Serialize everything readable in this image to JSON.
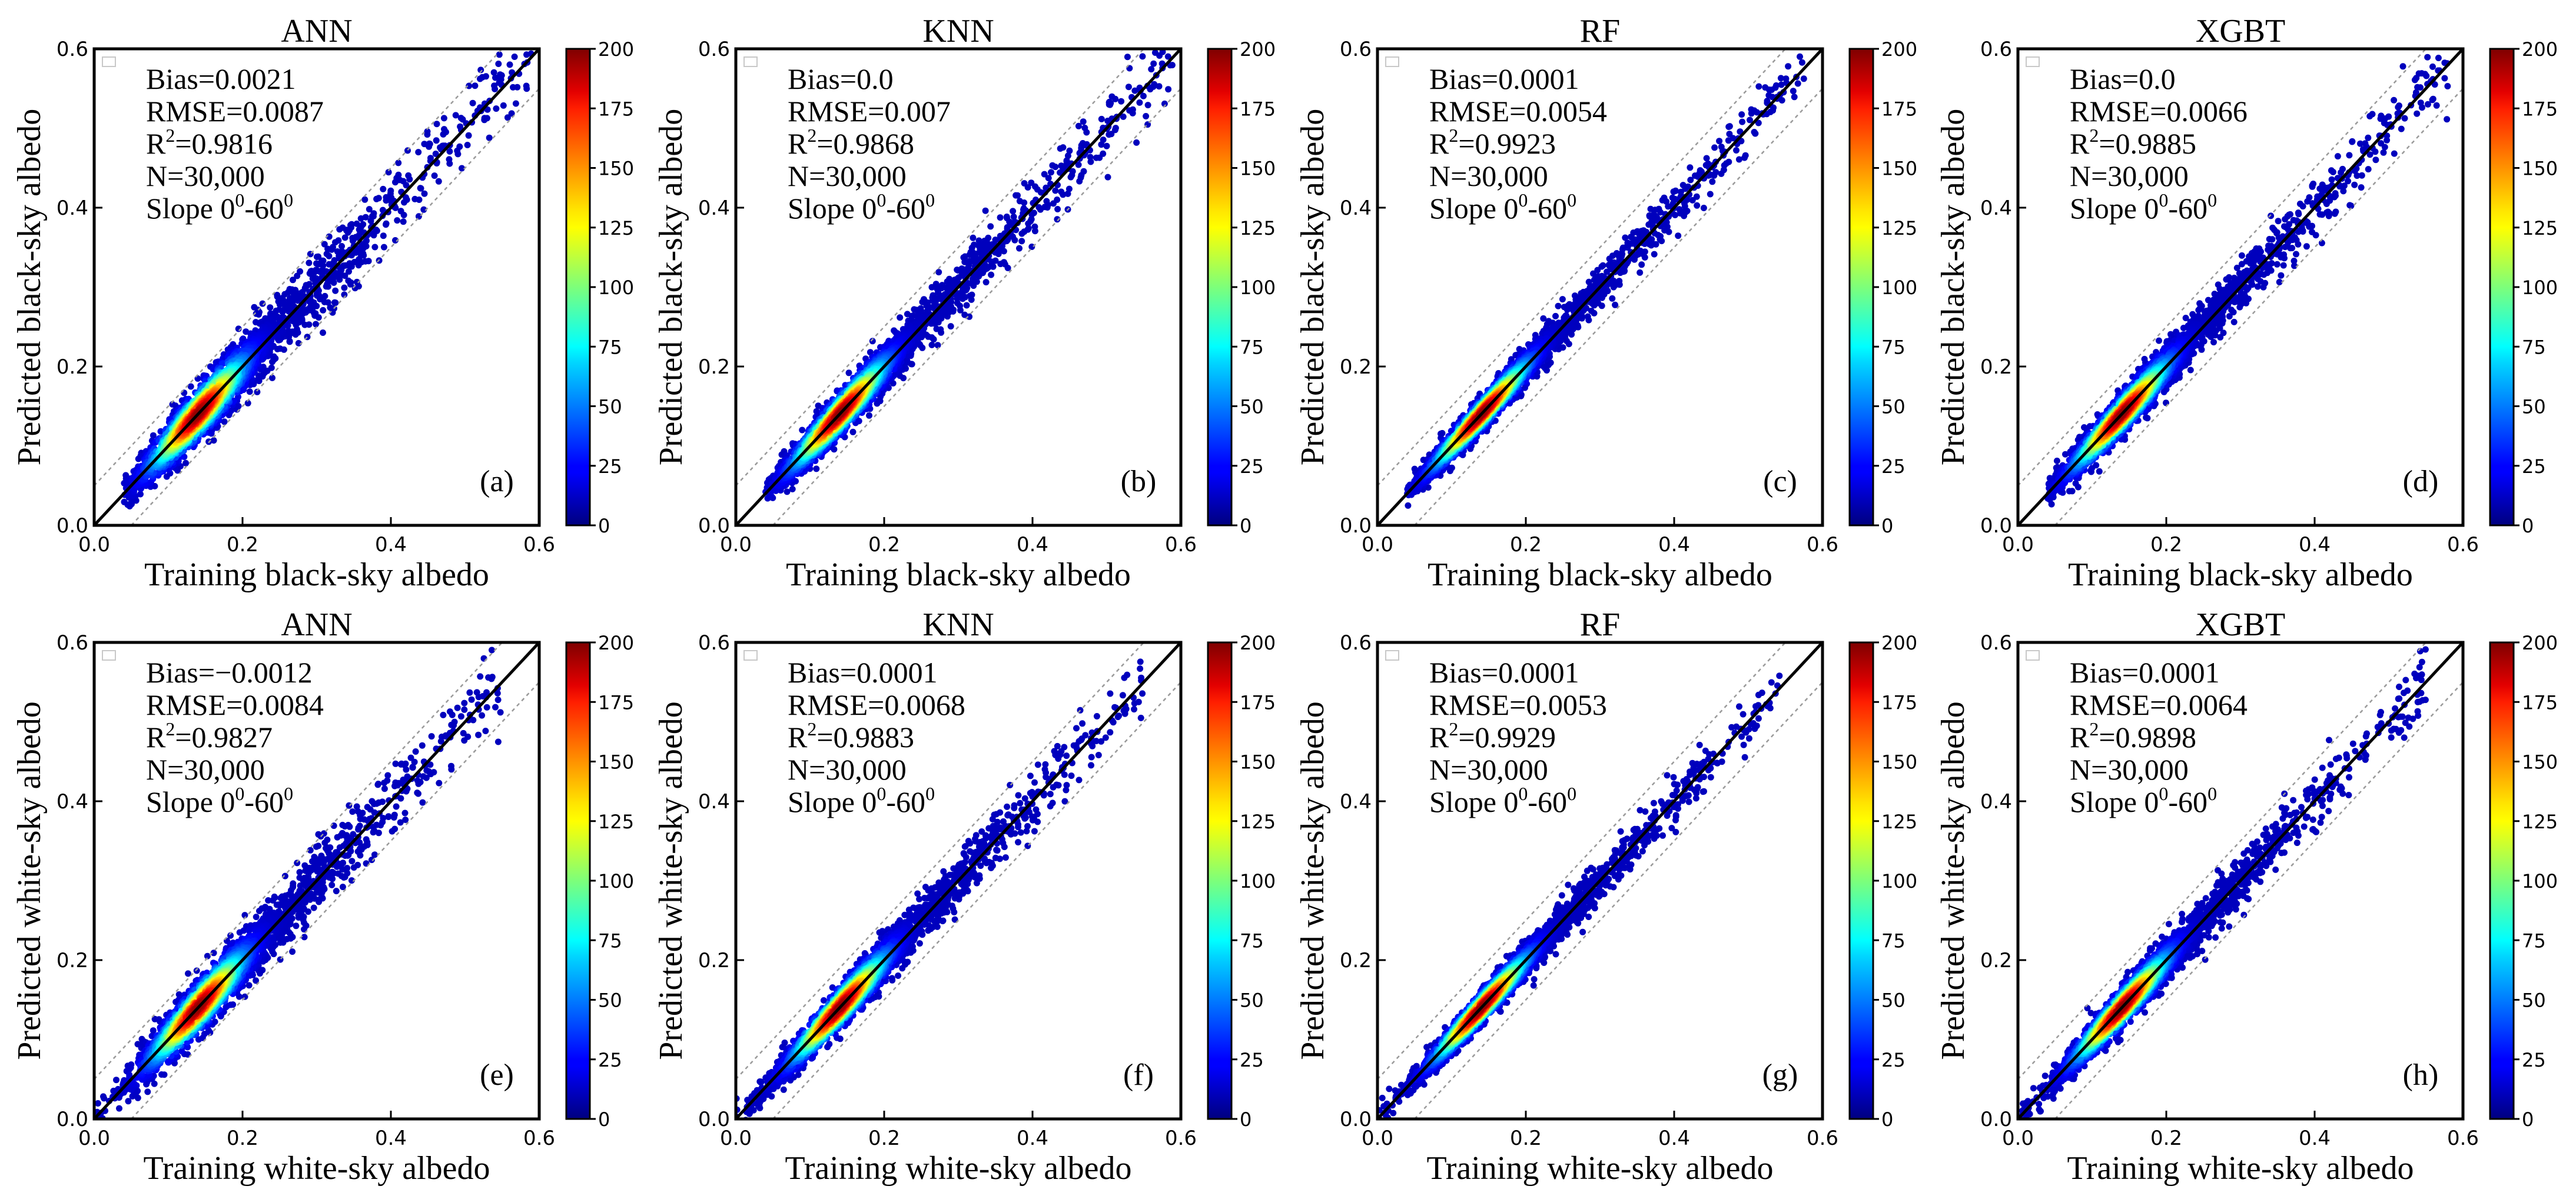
{
  "figure": {
    "panel_count": 8,
    "colormap": "jet",
    "colorbar_ticks": [
      "0",
      "25",
      "50",
      "75",
      "100",
      "125",
      "150",
      "175",
      "200"
    ],
    "colorbar_range": [
      0,
      200
    ],
    "axis_ticks": [
      "0.0",
      "0.2",
      "0.4",
      "0.6"
    ],
    "axis_range": [
      0,
      0.6
    ]
  },
  "chart_data": [
    {
      "type": "scatter",
      "panel": "(a)",
      "title": "ANN",
      "xlabel": "Training black-sky albedo",
      "ylabel": "Predicted black-sky albedo",
      "stats": {
        "bias": "Bias=0.0021",
        "rmse": "RMSE=0.0087",
        "r2_prefix": "R",
        "r2_value": "=0.9816",
        "n": "N=30,000",
        "slope_prefix": "Slope 0",
        "slope_value": "-60"
      },
      "xlim": [
        0,
        0.6
      ],
      "ylim": [
        0,
        0.6
      ],
      "density_peak": 0.14,
      "x_range": [
        0.04,
        0.59
      ],
      "spread": 0.0087,
      "reference_lines": {
        "one_to_one": true,
        "offset": 0.05
      }
    },
    {
      "type": "scatter",
      "panel": "(b)",
      "title": "KNN",
      "xlabel": "Training black-sky albedo",
      "ylabel": "Predicted black-sky albedo",
      "stats": {
        "bias": "Bias=0.0",
        "rmse": "RMSE=0.007",
        "r2_prefix": "R",
        "r2_value": "=0.9868",
        "n": "N=30,000",
        "slope_prefix": "Slope 0",
        "slope_value": "-60"
      },
      "xlim": [
        0,
        0.6
      ],
      "ylim": [
        0,
        0.6
      ],
      "density_peak": 0.14,
      "x_range": [
        0.04,
        0.59
      ],
      "spread": 0.007,
      "reference_lines": {
        "one_to_one": true,
        "offset": 0.05
      }
    },
    {
      "type": "scatter",
      "panel": "(c)",
      "title": "RF",
      "xlabel": "Training black-sky albedo",
      "ylabel": "Predicted black-sky albedo",
      "stats": {
        "bias": "Bias=0.0001",
        "rmse": "RMSE=0.0054",
        "r2_prefix": "R",
        "r2_value": "=0.9923",
        "n": "N=30,000",
        "slope_prefix": "Slope 0",
        "slope_value": "-60"
      },
      "xlim": [
        0,
        0.6
      ],
      "ylim": [
        0,
        0.6
      ],
      "density_peak": 0.14,
      "x_range": [
        0.04,
        0.58
      ],
      "spread": 0.0054,
      "reference_lines": {
        "one_to_one": true,
        "offset": 0.05
      }
    },
    {
      "type": "scatter",
      "panel": "(d)",
      "title": "XGBT",
      "xlabel": "Training black-sky albedo",
      "ylabel": "Predicted black-sky albedo",
      "stats": {
        "bias": "Bias=0.0",
        "rmse": "RMSE=0.0066",
        "r2_prefix": "R",
        "r2_value": "=0.9885",
        "n": "N=30,000",
        "slope_prefix": "Slope 0",
        "slope_value": "-60"
      },
      "xlim": [
        0,
        0.6
      ],
      "ylim": [
        0,
        0.6
      ],
      "density_peak": 0.14,
      "x_range": [
        0.04,
        0.58
      ],
      "spread": 0.0066,
      "reference_lines": {
        "one_to_one": true,
        "offset": 0.05
      }
    },
    {
      "type": "scatter",
      "panel": "(e)",
      "title": "ANN",
      "xlabel": "Training white-sky albedo",
      "ylabel": "Predicted white-sky albedo",
      "stats": {
        "bias": "Bias=−0.0012",
        "rmse": "RMSE=0.0084",
        "r2_prefix": "R",
        "r2_value": "=0.9827",
        "n": "N=30,000",
        "slope_prefix": "Slope 0",
        "slope_value": "-60"
      },
      "xlim": [
        0,
        0.6
      ],
      "ylim": [
        0,
        0.6
      ],
      "density_peak": 0.14,
      "x_range": [
        0.0,
        0.55
      ],
      "spread": 0.0084,
      "reference_lines": {
        "one_to_one": true,
        "offset": 0.05
      }
    },
    {
      "type": "scatter",
      "panel": "(f)",
      "title": "KNN",
      "xlabel": "Training white-sky albedo",
      "ylabel": "Predicted white-sky albedo",
      "stats": {
        "bias": "Bias=0.0001",
        "rmse": "RMSE=0.0068",
        "r2_prefix": "R",
        "r2_value": "=0.9883",
        "n": "N=30,000",
        "slope_prefix": "Slope 0",
        "slope_value": "-60"
      },
      "xlim": [
        0,
        0.6
      ],
      "ylim": [
        0,
        0.6
      ],
      "density_peak": 0.14,
      "x_range": [
        0.0,
        0.55
      ],
      "spread": 0.0068,
      "reference_lines": {
        "one_to_one": true,
        "offset": 0.05
      }
    },
    {
      "type": "scatter",
      "panel": "(g)",
      "title": "RF",
      "xlabel": "Training white-sky albedo",
      "ylabel": "Predicted white-sky albedo",
      "stats": {
        "bias": "Bias=0.0001",
        "rmse": "RMSE=0.0053",
        "r2_prefix": "R",
        "r2_value": "=0.9929",
        "n": "N=30,000",
        "slope_prefix": "Slope 0",
        "slope_value": "-60"
      },
      "xlim": [
        0,
        0.6
      ],
      "ylim": [
        0,
        0.6
      ],
      "density_peak": 0.14,
      "x_range": [
        0.0,
        0.55
      ],
      "spread": 0.0053,
      "reference_lines": {
        "one_to_one": true,
        "offset": 0.05
      }
    },
    {
      "type": "scatter",
      "panel": "(h)",
      "title": "XGBT",
      "xlabel": "Training white-sky albedo",
      "ylabel": "Predicted white-sky albedo",
      "stats": {
        "bias": "Bias=0.0001",
        "rmse": "RMSE=0.0064",
        "r2_prefix": "R",
        "r2_value": "=0.9898",
        "n": "N=30,000",
        "slope_prefix": "Slope 0",
        "slope_value": "-60"
      },
      "xlim": [
        0,
        0.6
      ],
      "ylim": [
        0,
        0.6
      ],
      "density_peak": 0.14,
      "x_range": [
        0.0,
        0.55
      ],
      "spread": 0.0064,
      "reference_lines": {
        "one_to_one": true,
        "offset": 0.05
      }
    }
  ]
}
